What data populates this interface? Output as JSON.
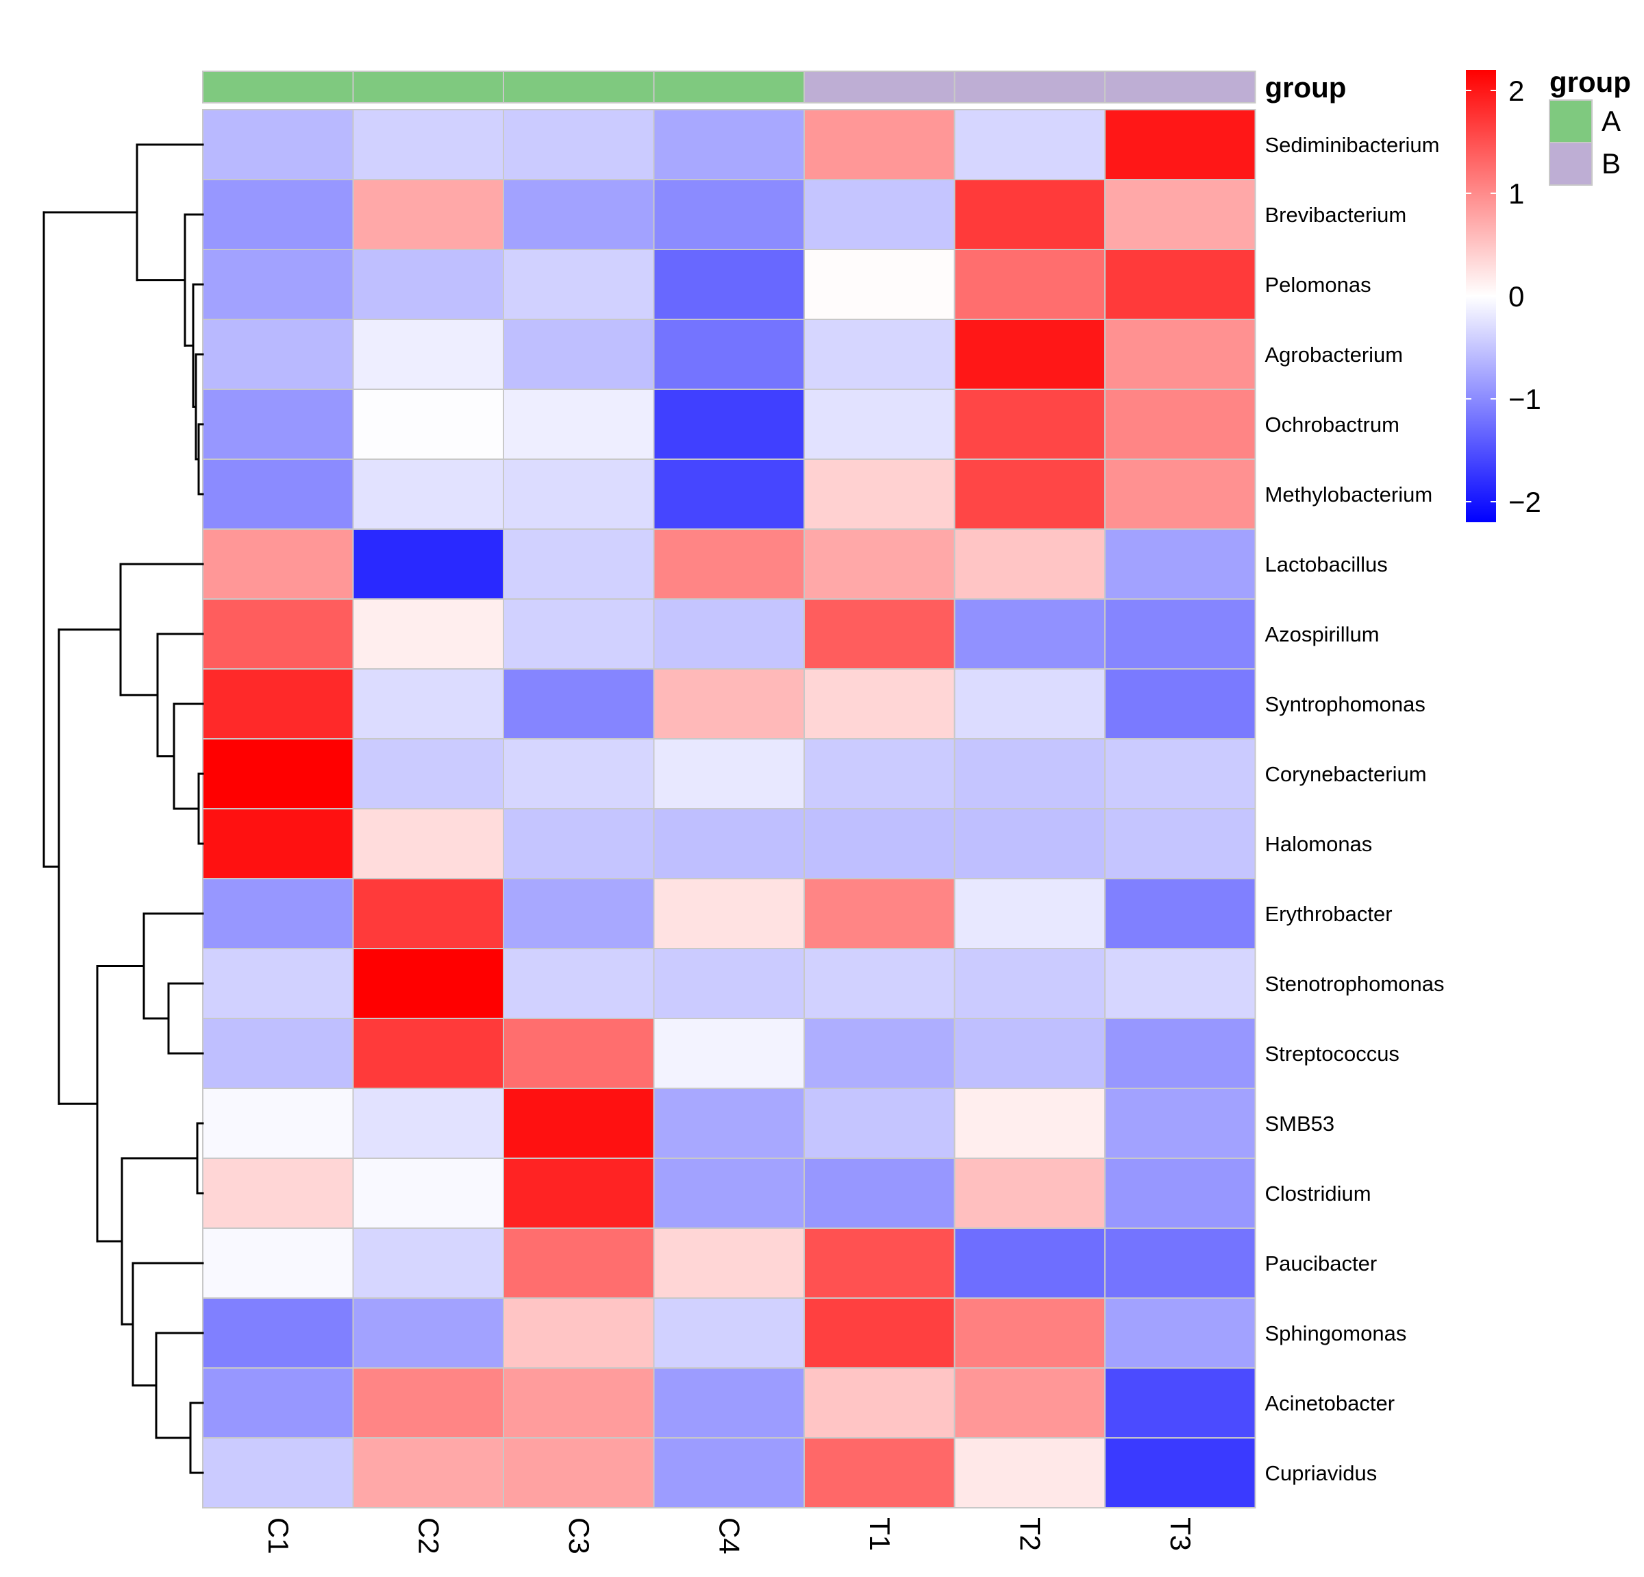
{
  "chart_data": {
    "type": "heatmap",
    "title": "",
    "columns": [
      "C1",
      "C2",
      "C3",
      "C4",
      "T1",
      "T2",
      "T3"
    ],
    "rows": [
      "Sediminibacterium",
      "Brevibacterium",
      "Pelomonas",
      "Agrobacterium",
      "Ochrobactrum",
      "Methylobacterium",
      "Lactobacillus",
      "Azospirillum",
      "Syntrophomonas",
      "Corynebacterium",
      "Halomonas",
      "Erythrobacter",
      "Stenotrophomonas",
      "Streptococcus",
      "SMB53",
      "Clostridium",
      "Paucibacter",
      "Sphingomonas",
      "Acinetobacter",
      "Cupriavidus"
    ],
    "values": [
      [
        -0.6,
        -0.4,
        -0.45,
        -0.75,
        0.9,
        -0.35,
        2.0
      ],
      [
        -0.9,
        0.75,
        -0.8,
        -1.0,
        -0.5,
        1.7,
        0.75
      ],
      [
        -0.8,
        -0.55,
        -0.4,
        -1.3,
        0.03,
        1.25,
        1.7
      ],
      [
        -0.6,
        -0.15,
        -0.55,
        -1.2,
        -0.35,
        2.0,
        0.95
      ],
      [
        -0.9,
        -0.02,
        -0.15,
        -1.65,
        -0.25,
        1.6,
        1.05
      ],
      [
        -1.0,
        -0.25,
        -0.3,
        -1.6,
        0.4,
        1.6,
        0.95
      ],
      [
        0.9,
        -1.85,
        -0.4,
        1.05,
        0.75,
        0.5,
        -0.8
      ],
      [
        1.4,
        0.15,
        -0.4,
        -0.5,
        1.4,
        -0.95,
        -1.05
      ],
      [
        1.85,
        -0.3,
        -1.05,
        0.6,
        0.35,
        -0.3,
        -1.15
      ],
      [
        2.2,
        -0.45,
        -0.35,
        -0.2,
        -0.45,
        -0.5,
        -0.45
      ],
      [
        2.05,
        0.3,
        -0.5,
        -0.55,
        -0.55,
        -0.55,
        -0.5
      ],
      [
        -0.9,
        1.7,
        -0.75,
        0.25,
        1.05,
        -0.2,
        -1.1
      ],
      [
        -0.4,
        2.2,
        -0.4,
        -0.45,
        -0.4,
        -0.45,
        -0.35
      ],
      [
        -0.55,
        1.7,
        1.25,
        -0.1,
        -0.7,
        -0.55,
        -0.9
      ],
      [
        -0.05,
        -0.25,
        2.05,
        -0.75,
        -0.5,
        0.15,
        -0.8
      ],
      [
        0.35,
        -0.05,
        1.9,
        -0.8,
        -0.9,
        0.55,
        -0.9
      ],
      [
        -0.05,
        -0.35,
        1.25,
        0.35,
        1.5,
        -1.25,
        -1.2
      ],
      [
        -1.1,
        -0.8,
        0.5,
        -0.4,
        1.65,
        1.1,
        -0.8
      ],
      [
        -0.9,
        1.05,
        0.85,
        -0.85,
        0.5,
        0.9,
        -1.55
      ],
      [
        -0.45,
        0.75,
        0.8,
        -0.85,
        1.3,
        0.2,
        -1.7
      ]
    ],
    "color_scale": {
      "low": "#0000ff",
      "mid": "#ffffff",
      "high": "#ff0000",
      "range": [
        -2.2,
        2.2
      ]
    },
    "colorbar_ticks": [
      2,
      1,
      0,
      -1,
      -2
    ],
    "colorbar_tick_labels": [
      "2",
      "1",
      "0",
      "−1",
      "−2"
    ],
    "annotation": {
      "title": "group",
      "column_groups": [
        "A",
        "A",
        "A",
        "A",
        "B",
        "B",
        "B"
      ],
      "levels": [
        "A",
        "B"
      ],
      "colors": {
        "A": "#7fc97f",
        "B": "#beaed4"
      }
    },
    "row_dendrogram": true,
    "grid": true
  }
}
